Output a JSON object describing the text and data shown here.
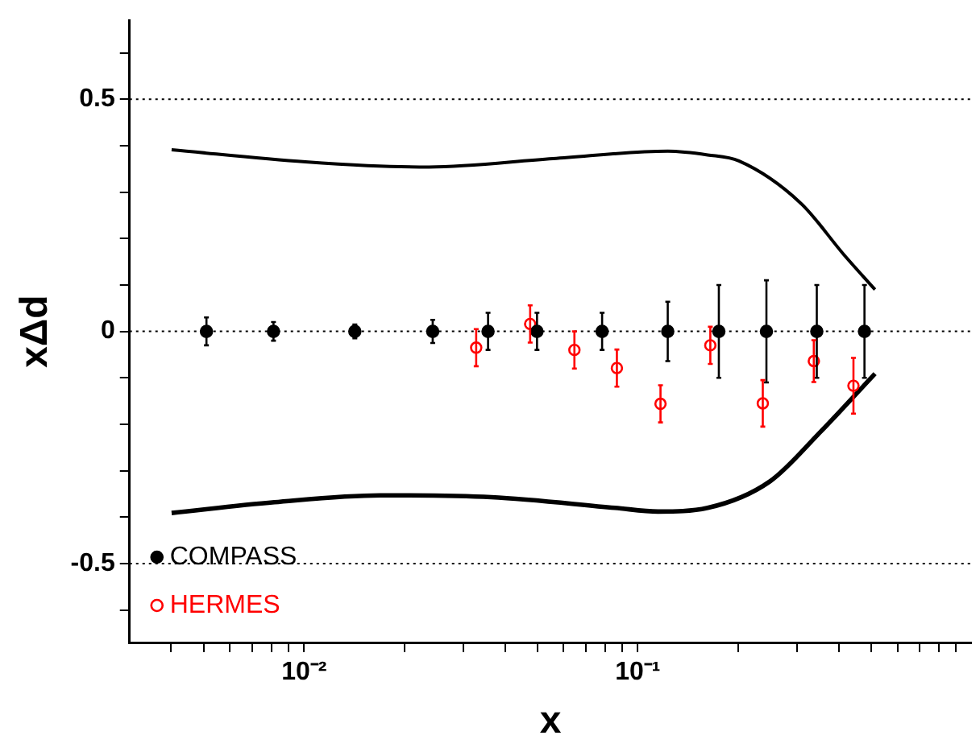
{
  "chart_data": {
    "type": "scatter",
    "xlabel": "x",
    "ylabel": "xΔd",
    "log": "x",
    "xlim": [
      0.003,
      1
    ],
    "ylim": [
      -0.67,
      0.67
    ],
    "xticks": [
      {
        "value": 0.004,
        "label": null
      },
      {
        "value": 0.005,
        "label": null
      },
      {
        "value": 0.006,
        "label": null
      },
      {
        "value": 0.007,
        "label": null
      },
      {
        "value": 0.008,
        "label": null
      },
      {
        "value": 0.009,
        "label": null
      },
      {
        "value": 0.01,
        "label": "10⁻²"
      },
      {
        "value": 0.02,
        "label": null
      },
      {
        "value": 0.03,
        "label": null
      },
      {
        "value": 0.04,
        "label": null
      },
      {
        "value": 0.05,
        "label": null
      },
      {
        "value": 0.06,
        "label": null
      },
      {
        "value": 0.07,
        "label": null
      },
      {
        "value": 0.08,
        "label": null
      },
      {
        "value": 0.09,
        "label": null
      },
      {
        "value": 0.1,
        "label": "10⁻¹"
      },
      {
        "value": 0.2,
        "label": null
      },
      {
        "value": 0.3,
        "label": null
      },
      {
        "value": 0.4,
        "label": null
      },
      {
        "value": 0.5,
        "label": null
      },
      {
        "value": 0.6,
        "label": null
      },
      {
        "value": 0.7,
        "label": null
      },
      {
        "value": 0.8,
        "label": null
      },
      {
        "value": 0.9,
        "label": null
      }
    ],
    "yticks": [
      {
        "value": -0.6,
        "label": null
      },
      {
        "value": -0.5,
        "label": "-0.5"
      },
      {
        "value": -0.4,
        "label": null
      },
      {
        "value": -0.3,
        "label": null
      },
      {
        "value": -0.2,
        "label": null
      },
      {
        "value": -0.1,
        "label": null
      },
      0,
      {
        "value": 0.1,
        "label": null
      },
      {
        "value": 0.2,
        "label": null
      },
      {
        "value": 0.3,
        "label": null
      },
      {
        "value": 0.4,
        "label": null
      },
      {
        "value": 0.5,
        "label": "0.5"
      },
      {
        "value": 0.6,
        "label": null
      }
    ],
    "grid": false,
    "legend": "bottom left",
    "ref_lines": [
      {
        "axis": "y",
        "value": 0.5,
        "line_style": "dotted"
      },
      {
        "axis": "y",
        "value": 0,
        "line_style": "dotted"
      },
      {
        "axis": "y",
        "value": -0.5,
        "line_style": "dotted"
      }
    ],
    "series": [
      {
        "name": "COMPASS",
        "color": "#000000",
        "marker": "circle",
        "x": [
          0.0051,
          0.0081,
          0.0142,
          0.0243,
          0.0356,
          0.0499,
          0.0782,
          0.123,
          0.175,
          0.243,
          0.344,
          0.478
        ],
        "values": [
          0,
          0,
          0,
          0,
          0,
          0,
          0,
          0,
          0,
          0,
          0,
          0
        ],
        "errors": [
          0.03,
          0.02,
          0.015,
          0.025,
          0.04,
          0.04,
          0.04,
          0.064,
          0.1,
          0.11,
          0.1,
          0.1
        ]
      },
      {
        "name": "HERMES",
        "color": "#ff0000",
        "marker": "circle",
        "x": [
          0.0328,
          0.0476,
          0.0646,
          0.0866,
          0.117,
          0.165,
          0.237,
          0.337,
          0.443
        ],
        "values": [
          -0.035,
          0.016,
          -0.04,
          -0.079,
          -0.156,
          -0.03,
          -0.155,
          -0.064,
          -0.117
        ],
        "errors": [
          0.04,
          0.04,
          0.04,
          0.04,
          0.04,
          0.04,
          0.05,
          0.045,
          0.06
        ]
      },
      {
        "type": "line",
        "color": "#000000",
        "marker": "none",
        "x": [
          0.00401,
          0.0101,
          0.0155,
          0.0237,
          0.0557,
          0.123,
          0.162,
          0.201,
          0.308,
          0.415,
          0.514
        ],
        "values": [
          0.391,
          0.365,
          0.357,
          0.354,
          0.372,
          0.388,
          0.38,
          0.367,
          0.276,
          0.165,
          0.09
        ]
      },
      {
        "type": "line",
        "color": "#000000",
        "marker": "none",
        "x": [
          0.00401,
          0.00815,
          0.0169,
          0.0364,
          0.0855,
          0.115,
          0.162,
          0.249,
          0.35,
          0.514
        ],
        "values": [
          -0.391,
          -0.368,
          -0.353,
          -0.357,
          -0.38,
          -0.388,
          -0.38,
          -0.323,
          -0.219,
          -0.091
        ]
      }
    ]
  }
}
